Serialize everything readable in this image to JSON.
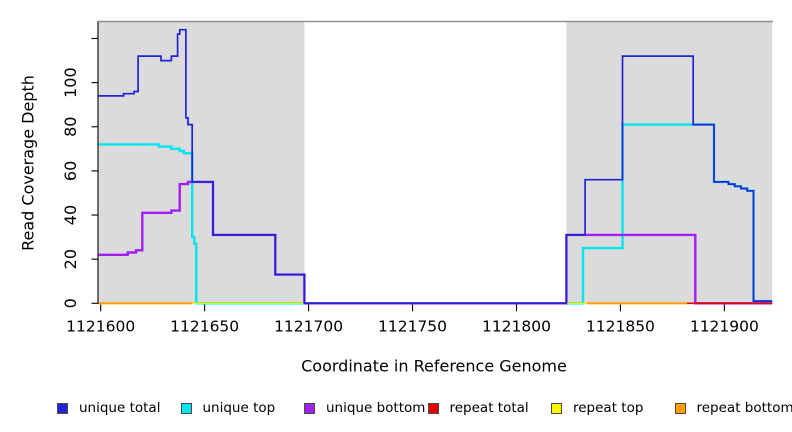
{
  "chart_data": {
    "type": "line",
    "subtype": "step-coverage-plot",
    "title": "",
    "xlabel": "Coordinate in Reference Genome",
    "ylabel": "Read Coverage Depth",
    "xlim": [
      1121598.7,
      1121923.4
    ],
    "ylim": [
      0,
      127.7
    ],
    "grid": false,
    "legend_position": "bottom",
    "x_ticks": [
      {
        "v": 1121600,
        "label": "1121600"
      },
      {
        "v": 1121650,
        "label": "1121650"
      },
      {
        "v": 1121700,
        "label": "1121700"
      },
      {
        "v": 1121750,
        "label": "1121750"
      },
      {
        "v": 1121800,
        "label": "1121800"
      },
      {
        "v": 1121850,
        "label": "1121850"
      },
      {
        "v": 1121900,
        "label": "1121900"
      }
    ],
    "y_ticks": [
      {
        "v": 0,
        "label": "0"
      },
      {
        "v": 20,
        "label": "20"
      },
      {
        "v": 40,
        "label": "40"
      },
      {
        "v": 60,
        "label": "60"
      },
      {
        "v": 80,
        "label": "80"
      },
      {
        "v": 100,
        "label": "100"
      },
      {
        "v": 120,
        "label": ""
      }
    ],
    "shaded_regions": [
      {
        "from": 1121599,
        "to": 1121698
      },
      {
        "from": 1121824,
        "to": 1121923
      }
    ],
    "top_reference_line_y": 127.7,
    "colors": {
      "region": "#DBDBDB",
      "top_line": "#8F8F8F",
      "axis": "#000000",
      "background": "#FFFFFF"
    },
    "series": [
      {
        "name": "unique top",
        "color": "#00E5EE",
        "segments": [
          [
            [
              1121599,
              72
            ],
            [
              1121628,
              71
            ],
            [
              1121634,
              70
            ],
            [
              1121638,
              69
            ],
            [
              1121640,
              68
            ],
            [
              1121644,
              30
            ],
            [
              1121645,
              27
            ],
            [
              1121646,
              0
            ],
            [
              1121832,
              25
            ],
            [
              1121851,
              81
            ],
            [
              1121895,
              55
            ],
            [
              1121902,
              54
            ],
            [
              1121905,
              53
            ],
            [
              1121908,
              52
            ],
            [
              1121911,
              51
            ],
            [
              1121914,
              1
            ],
            [
              1121923,
              1
            ]
          ]
        ]
      },
      {
        "name": "unique bottom",
        "color": "#A020F0",
        "segments": [
          [
            [
              1121599,
              22
            ],
            [
              1121613,
              23
            ],
            [
              1121617,
              24
            ],
            [
              1121620,
              41
            ],
            [
              1121634,
              42
            ],
            [
              1121638,
              54
            ],
            [
              1121642,
              55
            ],
            [
              1121654,
              31
            ],
            [
              1121684,
              13
            ],
            [
              1121698,
              0
            ],
            [
              1121824,
              31
            ],
            [
              1121886,
              0
            ],
            [
              1121923,
              0
            ]
          ]
        ]
      },
      {
        "name": "repeat top",
        "color": "#F2F200",
        "segments": [
          [
            [
              1121644,
              0
            ],
            [
              1121698,
              0
            ]
          ],
          [
            [
              1121824,
              0
            ],
            [
              1121834,
              0
            ]
          ]
        ]
      },
      {
        "name": "repeat total",
        "color": "#E00000",
        "segments": [
          [
            [
              1121882,
              0
            ],
            [
              1121923,
              0
            ]
          ]
        ]
      },
      {
        "name": "repeat bottom",
        "color": "#FFA000",
        "segments": [
          [
            [
              1121599,
              0
            ],
            [
              1121644,
              0
            ]
          ],
          [
            [
              1121834,
              0
            ],
            [
              1121882,
              0
            ]
          ]
        ]
      },
      {
        "name": "unique total",
        "color": "#2222D6",
        "segments": [
          [
            [
              1121599,
              94
            ],
            [
              1121611,
              95
            ],
            [
              1121616,
              96
            ],
            [
              1121618,
              112
            ],
            [
              1121629,
              110
            ],
            [
              1121634,
              112
            ],
            [
              1121637,
              122
            ],
            [
              1121638,
              124
            ],
            [
              1121641,
              84
            ],
            [
              1121642,
              81
            ],
            [
              1121644,
              55
            ],
            [
              1121654,
              31
            ],
            [
              1121684,
              13
            ],
            [
              1121698,
              0
            ],
            [
              1121824,
              31
            ],
            [
              1121833,
              56
            ],
            [
              1121851,
              112
            ],
            [
              1121885,
              81
            ],
            [
              1121895,
              55
            ],
            [
              1121902,
              54
            ],
            [
              1121905,
              53
            ],
            [
              1121908,
              52
            ],
            [
              1121911,
              51
            ],
            [
              1121914,
              1
            ],
            [
              1121923,
              1
            ]
          ]
        ]
      }
    ]
  },
  "legend": {
    "items": [
      {
        "label": "unique total",
        "color": "#2222D6"
      },
      {
        "label": "unique top",
        "color": "#00E5EE"
      },
      {
        "label": "unique bottom",
        "color": "#A020F0"
      },
      {
        "label": "repeat total",
        "color": "#E00000"
      },
      {
        "label": "repeat top",
        "color": "#F7F700"
      },
      {
        "label": "repeat bottom",
        "color": "#FFA000"
      }
    ]
  }
}
